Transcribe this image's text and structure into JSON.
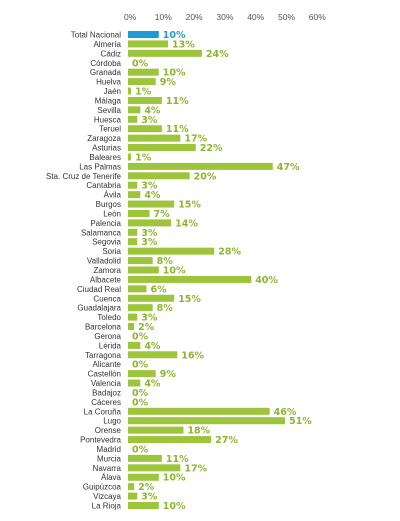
{
  "colors": {
    "bar": "#9dc43a",
    "highlight_bar": "#1f9ad6",
    "value_label": "#8db52f",
    "highlight_value_label": "#1f9ad6",
    "highlight_category_label": "#1f9ad6",
    "axis_tick": "#555555",
    "category_label": "#333333"
  },
  "chart_data": {
    "type": "bar",
    "orientation": "horizontal",
    "xlim": [
      0,
      60
    ],
    "xticks": [
      "0%",
      "10%",
      "20%",
      "30%",
      "40%",
      "50%",
      "60%"
    ],
    "tick_values": [
      0,
      10,
      20,
      30,
      40,
      50,
      60
    ],
    "value_suffix": "%",
    "grid": false,
    "highlight_category": "Total Nacional",
    "categories": [
      "Total Nacional",
      "Almería",
      "Cádiz",
      "Córdoba",
      "Granada",
      "Huelva",
      "Jaén",
      "Málaga",
      "Sevilla",
      "Huesca",
      "Teruel",
      "Zaragoza",
      "Asturias",
      "Baleares",
      "Las Palmas",
      "Sta. Cruz de Tenerife",
      "Cantabria",
      "Ávila",
      "Burgos",
      "León",
      "Palencia",
      "Salamanca",
      "Segovia",
      "Soria",
      "Valladolid",
      "Zamora",
      "Albacete",
      "Ciudad Real",
      "Cuenca",
      "Guadalajara",
      "Toledo",
      "Barcelona",
      "Gerona",
      "Lérida",
      "Tarragona",
      "Alicante",
      "Castellón",
      "Valencia",
      "Badajoz",
      "Cáceres",
      "La Coruña",
      "Lugo",
      "Orense",
      "Pontevedra",
      "Madrid",
      "Murcia",
      "Navarra",
      "Álava",
      "Guipúzcoa",
      "Vizcaya",
      "La Rioja"
    ],
    "values": [
      10,
      13,
      24,
      0,
      10,
      9,
      1,
      11,
      4,
      3,
      11,
      17,
      22,
      1,
      47,
      20,
      3,
      4,
      15,
      7,
      14,
      3,
      3,
      28,
      8,
      10,
      40,
      6,
      15,
      8,
      3,
      2,
      0,
      4,
      16,
      0,
      9,
      4,
      0,
      0,
      46,
      51,
      18,
      27,
      0,
      11,
      17,
      10,
      2,
      3,
      10
    ]
  }
}
